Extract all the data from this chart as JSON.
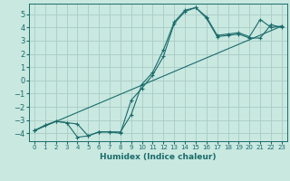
{
  "title": "",
  "xlabel": "Humidex (Indice chaleur)",
  "ylabel": "",
  "bg_color": "#c8e8e0",
  "grid_color": "#a8ccc4",
  "line_color": "#1a6b6b",
  "spine_color": "#1a6b6b",
  "xlim": [
    -0.5,
    23.5
  ],
  "ylim": [
    -4.6,
    5.8
  ],
  "yticks": [
    -4,
    -3,
    -2,
    -1,
    0,
    1,
    2,
    3,
    4,
    5
  ],
  "xticks": [
    0,
    1,
    2,
    3,
    4,
    5,
    6,
    7,
    8,
    9,
    10,
    11,
    12,
    13,
    14,
    15,
    16,
    17,
    18,
    19,
    20,
    21,
    22,
    23
  ],
  "series1_x": [
    0,
    1,
    2,
    3,
    4,
    5,
    6,
    7,
    8,
    9,
    10,
    11,
    12,
    13,
    14,
    15,
    16,
    17,
    18,
    19,
    20,
    21,
    22,
    23
  ],
  "series1_y": [
    -3.8,
    -3.4,
    -3.1,
    -3.2,
    -3.3,
    -4.2,
    -3.9,
    -3.9,
    -3.9,
    -2.6,
    -0.3,
    0.6,
    2.3,
    4.4,
    5.3,
    5.5,
    4.8,
    3.4,
    3.5,
    3.6,
    3.3,
    4.6,
    4.0,
    4.1
  ],
  "series2_x": [
    0,
    1,
    2,
    3,
    4,
    5,
    6,
    7,
    8,
    9,
    10,
    11,
    12,
    13,
    14,
    15,
    16,
    17,
    18,
    19,
    20,
    21,
    22,
    23
  ],
  "series2_y": [
    -3.8,
    -3.4,
    -3.1,
    -3.2,
    -4.3,
    -4.2,
    -3.9,
    -3.9,
    -4.0,
    -1.5,
    -0.6,
    0.4,
    1.8,
    4.3,
    5.2,
    5.5,
    4.7,
    3.3,
    3.4,
    3.5,
    3.2,
    3.2,
    4.2,
    4.0
  ],
  "series3_x": [
    0,
    23
  ],
  "series3_y": [
    -3.8,
    4.1
  ],
  "xlabel_fontsize": 6.5,
  "tick_fontsize_x": 5,
  "tick_fontsize_y": 6,
  "linewidth": 0.8,
  "markersize": 2.5
}
